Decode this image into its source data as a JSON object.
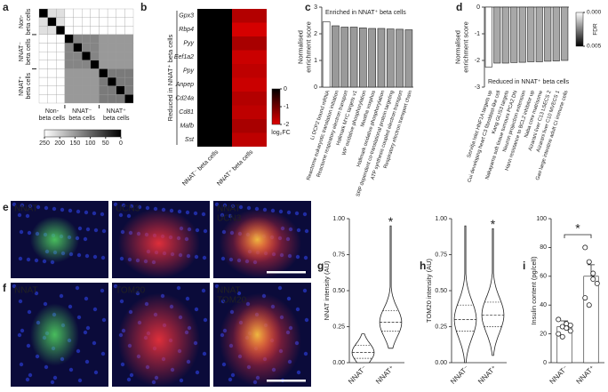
{
  "panel_labels": [
    "a",
    "b",
    "c",
    "d",
    "e",
    "f",
    "g",
    "h",
    "i"
  ],
  "micrographs": {
    "e": [
      [
        {
          "text": "NNAT",
          "color": "#3fbf5a"
        }
      ],
      [
        {
          "text": "UCN3",
          "color": "#ff5a4a"
        }
      ],
      [
        {
          "text": "NNAT",
          "color": "#3fbf5a"
        },
        {
          "text": "UCN3",
          "color": "#ff5a4a"
        }
      ]
    ],
    "f": [
      [
        {
          "text": "NNAT",
          "color": "#3fbf5a"
        }
      ],
      [
        {
          "text": "TOM20",
          "color": "#ff5a4a"
        }
      ],
      [
        {
          "text": "NNAT",
          "color": "#3fbf5a"
        },
        {
          "text": "TOM20",
          "color": "#ff5a4a"
        }
      ]
    ]
  },
  "chart_data": [
    {
      "type": "heatmap",
      "y_labels": [
        "Non-\nbeta cells",
        "NNAT⁻\nbeta cells",
        "NNAT⁺\nbeta cells"
      ],
      "x_labels": [
        "Non-\nbeta cells",
        "NNAT⁻\nbeta cells",
        "NNAT⁺\nbeta cells"
      ],
      "values": [
        [
          0,
          220,
          220,
          250,
          250,
          250,
          250,
          250,
          250,
          250,
          250
        ],
        [
          220,
          0,
          220,
          250,
          250,
          250,
          250,
          250,
          250,
          250,
          250
        ],
        [
          220,
          220,
          0,
          250,
          250,
          250,
          250,
          250,
          250,
          250,
          250
        ],
        [
          250,
          250,
          250,
          0,
          130,
          130,
          130,
          150,
          150,
          150,
          150
        ],
        [
          250,
          250,
          250,
          130,
          0,
          130,
          130,
          150,
          150,
          150,
          150
        ],
        [
          250,
          250,
          250,
          130,
          130,
          0,
          130,
          150,
          150,
          150,
          150
        ],
        [
          250,
          250,
          250,
          130,
          130,
          130,
          0,
          150,
          150,
          150,
          150
        ],
        [
          250,
          250,
          250,
          150,
          150,
          150,
          150,
          0,
          120,
          120,
          120
        ],
        [
          250,
          250,
          250,
          150,
          150,
          150,
          150,
          120,
          0,
          120,
          120
        ],
        [
          250,
          250,
          250,
          150,
          150,
          150,
          150,
          120,
          120,
          0,
          120
        ],
        [
          250,
          250,
          250,
          150,
          150,
          150,
          150,
          120,
          120,
          120,
          0
        ]
      ],
      "colorbar": {
        "lim": [
          0,
          250
        ],
        "ticks": [
          250,
          200,
          150,
          100,
          50,
          0
        ]
      }
    },
    {
      "type": "heatmap",
      "rows": [
        "Gpx3",
        "Rbp4",
        "Pyy",
        "Eef1a2",
        "Ppy",
        "Anpep",
        "Cd24a",
        "Cd81",
        "Mafb",
        "Sst"
      ],
      "categories": [
        "NNAT⁻ beta cells",
        "NNAT⁺ beta cells"
      ],
      "ylabel": "Reduced in NNAT⁺ beta cells",
      "values": [
        [
          0,
          -1.6
        ],
        [
          0,
          -1.9
        ],
        [
          0,
          -1.5
        ],
        [
          0,
          -1.8
        ],
        [
          0,
          -1.7
        ],
        [
          0,
          -1.8
        ],
        [
          0,
          -1.6
        ],
        [
          0,
          -1.7
        ],
        [
          0,
          -1.5
        ],
        [
          0,
          -1.7
        ]
      ],
      "colorbar": {
        "label": "log₂FC",
        "lim": [
          -2,
          0
        ],
        "ticks": [
          0,
          -1,
          -2
        ]
      }
    },
    {
      "type": "bar",
      "ylabel": "Normalised\nenrichment score",
      "annotation": "Enriched in NNAT⁺ beta cells",
      "categories": [
        "Li DCP2 bound mRNA",
        "Reactome eukaryotic translation initiation",
        "Reactome respiratory electron transport",
        "Hallmark MYC targets v1",
        "WP oxidative phosphorylation",
        "Mootha voxphos",
        "Hallmark oxidative phosphorylation",
        "SRP dependent co-translational protein targeting",
        "ATP synthesis coupled electron transport",
        "Respiratory electron transport chain"
      ],
      "values": [
        2.45,
        2.3,
        2.25,
        2.25,
        2.22,
        2.2,
        2.2,
        2.18,
        2.17,
        2.15
      ],
      "colors": [
        "#ffffff",
        "#9a9a9a",
        "#9a9a9a",
        "#9a9a9a",
        "#9a9a9a",
        "#9a9a9a",
        "#9a9a9a",
        "#9a9a9a",
        "#9a9a9a",
        "#9a9a9a"
      ],
      "ylim": [
        0,
        3
      ],
      "yticks": [
        0,
        1,
        2,
        3
      ]
    },
    {
      "type": "bar",
      "ylabel": "Normalised\nenrichment score",
      "annotation": "Reduced in NNAT⁺ beta cells",
      "categories": [
        "Servitja Islet HNF1A targets up",
        "Cui developing heart C3 fibroblast-like cell",
        "Kang GLIS3 targets",
        "Nakayama soft tissue tumours PCA2 DN",
        "Neuron projection extension",
        "Hann resistance to BCL2 inhibitor up",
        "Naba core matrisome",
        "Aizarani liver C13 LSECS 2",
        "Aizarani liver C10 MVECS 1",
        "Gao large intestine adult CI immune cells"
      ],
      "values": [
        -2.25,
        -2.1,
        -2.1,
        -2.08,
        -2.07,
        -2.05,
        -2.05,
        -2.03,
        -2.02,
        -2.0
      ],
      "colors": [
        "#ffffff",
        "#a8a8a8",
        "#a8a8a8",
        "#a8a8a8",
        "#a8a8a8",
        "#a8a8a8",
        "#a8a8a8",
        "#a8a8a8",
        "#a8a8a8",
        "#a8a8a8"
      ],
      "ylim": [
        -3,
        0
      ],
      "yticks": [
        0,
        -1,
        -2,
        -3
      ],
      "colorbar": {
        "label": "FDR",
        "lim": [
          0,
          0.005
        ],
        "ticks": [
          {
            "value": 0,
            "label": "0.000"
          },
          {
            "value": 0.005,
            "label": "0.005"
          }
        ]
      }
    },
    {
      "type": "violin",
      "ylabel": "NNAT intensity (AU)",
      "categories": [
        "NNAT⁻",
        "NNAT⁺"
      ],
      "stats": [
        {
          "min": 0,
          "q1": 0.03,
          "median": 0.07,
          "q3": 0.12,
          "max": 0.2
        },
        {
          "min": 0.1,
          "q1": 0.22,
          "median": 0.28,
          "q3": 0.36,
          "max": 0.95
        }
      ],
      "annotation": "*",
      "ylim": [
        0,
        1
      ],
      "yticks": [
        {
          "value": 0,
          "label": "0.00"
        },
        {
          "value": 0.25,
          "label": "0.25"
        },
        {
          "value": 0.5,
          "label": "0.50"
        },
        {
          "value": 0.75,
          "label": "0.75"
        },
        {
          "value": 1,
          "label": "1.00"
        }
      ]
    },
    {
      "type": "violin",
      "ylabel": "TOM20 intensity (AU)",
      "categories": [
        "NNAT⁻",
        "NNAT⁺"
      ],
      "stats": [
        {
          "min": 0,
          "q1": 0.22,
          "median": 0.3,
          "q3": 0.4,
          "max": 0.95
        },
        {
          "min": 0.05,
          "q1": 0.25,
          "median": 0.33,
          "q3": 0.42,
          "max": 0.93
        }
      ],
      "annotation": "*",
      "ylim": [
        0,
        1
      ],
      "yticks": [
        {
          "value": 0,
          "label": "0.00"
        },
        {
          "value": 0.25,
          "label": "0.25"
        },
        {
          "value": 0.5,
          "label": "0.50"
        },
        {
          "value": 0.75,
          "label": "0.75"
        },
        {
          "value": 1,
          "label": "1.00"
        }
      ]
    },
    {
      "type": "bar",
      "ylabel": "Insulin content (pg/cell)",
      "categories": [
        "NNAT⁻",
        "NNAT⁺"
      ],
      "values": [
        25,
        60
      ],
      "errors": [
        4,
        8
      ],
      "points": [
        [
          20,
          25,
          27,
          22,
          30,
          18,
          24,
          26
        ],
        [
          80,
          70,
          62,
          55,
          45,
          40,
          58
        ]
      ],
      "color": "#ffffff",
      "annotation": "*",
      "ylim": [
        0,
        100
      ],
      "yticks": [
        0,
        20,
        40,
        60,
        80,
        100
      ]
    }
  ]
}
